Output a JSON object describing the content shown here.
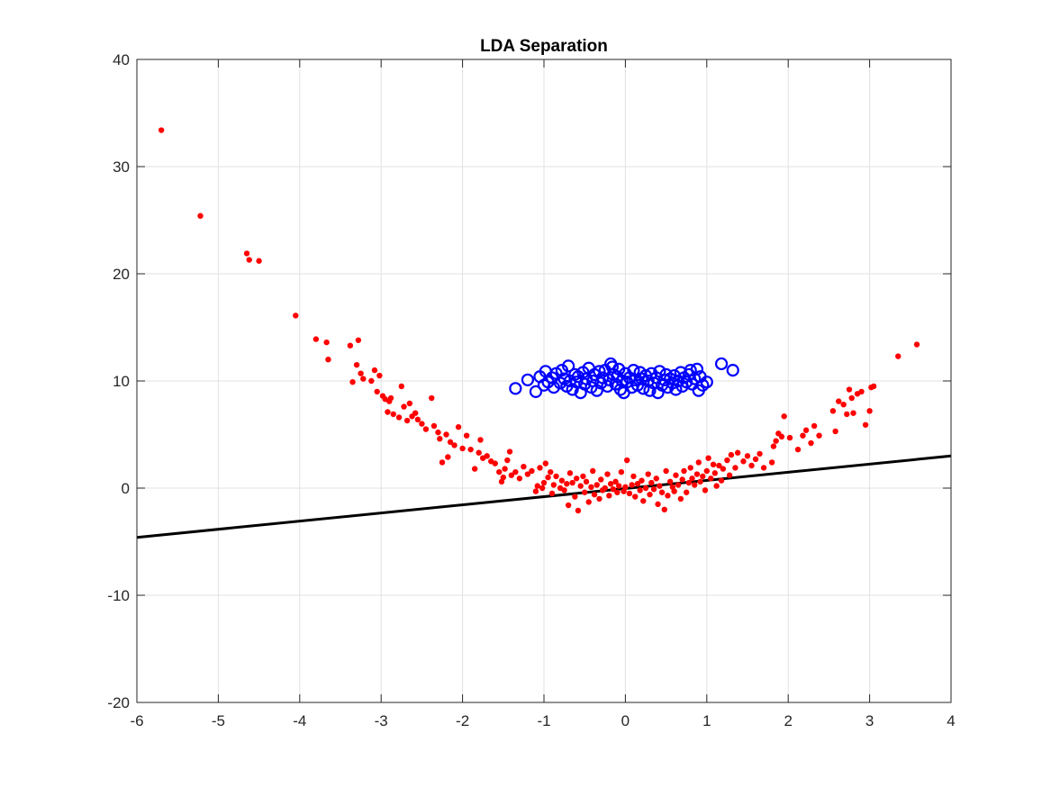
{
  "chart_data": {
    "type": "scatter",
    "title": "LDA Separation",
    "xlabel": "",
    "ylabel": "",
    "xlim": [
      -6,
      4
    ],
    "ylim": [
      -20,
      40
    ],
    "xticks": [
      "-6",
      "-5",
      "-4",
      "-3",
      "-2",
      "-1",
      "0",
      "1",
      "2",
      "3",
      "4"
    ],
    "yticks": [
      "-20",
      "-10",
      "0",
      "10",
      "20",
      "30",
      "40"
    ],
    "grid": true,
    "legend": "none",
    "series": [
      {
        "marker": "filled-dot",
        "color": "#ff0000",
        "points": [
          [
            -5.7,
            33.4
          ],
          [
            -5.22,
            25.4
          ],
          [
            -4.65,
            21.9
          ],
          [
            -4.62,
            21.3
          ],
          [
            -4.5,
            21.2
          ],
          [
            -4.05,
            16.1
          ],
          [
            -3.8,
            13.9
          ],
          [
            -3.67,
            13.6
          ],
          [
            -3.65,
            12.0
          ],
          [
            -3.38,
            13.3
          ],
          [
            -3.28,
            13.8
          ],
          [
            -3.3,
            11.5
          ],
          [
            -3.25,
            10.7
          ],
          [
            -3.35,
            9.9
          ],
          [
            -3.22,
            10.2
          ],
          [
            -3.12,
            10.0
          ],
          [
            -3.08,
            11.0
          ],
          [
            -3.05,
            9.0
          ],
          [
            -3.02,
            10.5
          ],
          [
            -2.98,
            8.6
          ],
          [
            -2.95,
            8.3
          ],
          [
            -2.92,
            7.1
          ],
          [
            -2.9,
            8.1
          ],
          [
            -2.88,
            8.4
          ],
          [
            -2.85,
            6.9
          ],
          [
            -2.78,
            6.6
          ],
          [
            -2.75,
            9.5
          ],
          [
            -2.72,
            7.6
          ],
          [
            -2.68,
            6.3
          ],
          [
            -2.65,
            7.9
          ],
          [
            -2.62,
            6.7
          ],
          [
            -2.58,
            7.0
          ],
          [
            -2.55,
            6.4
          ],
          [
            -2.5,
            6.0
          ],
          [
            -2.45,
            5.5
          ],
          [
            -2.38,
            8.4
          ],
          [
            -2.35,
            5.8
          ],
          [
            -2.3,
            5.2
          ],
          [
            -2.28,
            4.6
          ],
          [
            -2.25,
            2.4
          ],
          [
            -2.2,
            5.0
          ],
          [
            -2.18,
            2.9
          ],
          [
            -2.15,
            4.3
          ],
          [
            -2.1,
            4.0
          ],
          [
            -2.05,
            5.7
          ],
          [
            -2.0,
            3.7
          ],
          [
            -1.95,
            4.9
          ],
          [
            -1.9,
            3.6
          ],
          [
            -1.85,
            1.8
          ],
          [
            -1.8,
            3.3
          ],
          [
            -1.78,
            4.5
          ],
          [
            -1.75,
            2.8
          ],
          [
            -1.7,
            3.0
          ],
          [
            -1.65,
            2.5
          ],
          [
            -1.6,
            2.3
          ],
          [
            -1.55,
            1.5
          ],
          [
            -1.52,
            0.6
          ],
          [
            -1.5,
            1.0
          ],
          [
            -1.48,
            1.8
          ],
          [
            -1.45,
            2.6
          ],
          [
            -1.42,
            3.4
          ],
          [
            -1.4,
            1.2
          ],
          [
            -1.35,
            1.5
          ],
          [
            -1.3,
            0.9
          ],
          [
            -1.25,
            2.0
          ],
          [
            -1.2,
            1.3
          ],
          [
            -1.15,
            1.6
          ],
          [
            -1.1,
            -0.3
          ],
          [
            -1.08,
            0.2
          ],
          [
            -1.05,
            1.9
          ],
          [
            -1.02,
            0.0
          ],
          [
            -1.0,
            0.5
          ],
          [
            -0.98,
            2.3
          ],
          [
            -0.95,
            1.0
          ],
          [
            -0.92,
            1.5
          ],
          [
            -0.9,
            -0.5
          ],
          [
            -0.88,
            0.3
          ],
          [
            -0.85,
            1.1
          ],
          [
            -0.8,
            0.0
          ],
          [
            -0.78,
            0.7
          ],
          [
            -0.75,
            -0.2
          ],
          [
            -0.72,
            0.4
          ],
          [
            -0.7,
            -1.6
          ],
          [
            -0.68,
            1.4
          ],
          [
            -0.65,
            0.5
          ],
          [
            -0.62,
            -0.8
          ],
          [
            -0.6,
            0.9
          ],
          [
            -0.58,
            -2.1
          ],
          [
            -0.55,
            0.2
          ],
          [
            -0.52,
            1.1
          ],
          [
            -0.5,
            -0.4
          ],
          [
            -0.48,
            0.6
          ],
          [
            -0.45,
            -1.3
          ],
          [
            -0.42,
            0.1
          ],
          [
            -0.4,
            1.6
          ],
          [
            -0.38,
            -0.6
          ],
          [
            -0.35,
            0.3
          ],
          [
            -0.32,
            -1.0
          ],
          [
            -0.3,
            0.8
          ],
          [
            -0.28,
            -0.2
          ],
          [
            -0.25,
            0.0
          ],
          [
            -0.22,
            1.3
          ],
          [
            -0.2,
            -0.7
          ],
          [
            -0.18,
            0.4
          ],
          [
            -0.15,
            -0.1
          ],
          [
            -0.12,
            0.6
          ],
          [
            -0.1,
            -0.4
          ],
          [
            -0.08,
            0.2
          ],
          [
            -0.05,
            1.5
          ],
          [
            -0.02,
            -0.3
          ],
          [
            0.0,
            0.1
          ],
          [
            0.02,
            2.6
          ],
          [
            0.05,
            -0.5
          ],
          [
            0.08,
            0.3
          ],
          [
            0.1,
            1.1
          ],
          [
            0.12,
            -0.8
          ],
          [
            0.15,
            0.4
          ],
          [
            0.18,
            -0.2
          ],
          [
            0.2,
            0.7
          ],
          [
            0.22,
            -1.2
          ],
          [
            0.25,
            0.0
          ],
          [
            0.28,
            1.3
          ],
          [
            0.3,
            -0.6
          ],
          [
            0.32,
            0.5
          ],
          [
            0.35,
            -0.1
          ],
          [
            0.38,
            0.9
          ],
          [
            0.4,
            -1.5
          ],
          [
            0.42,
            0.2
          ],
          [
            0.45,
            -0.4
          ],
          [
            0.48,
            -2.0
          ],
          [
            0.5,
            1.6
          ],
          [
            0.52,
            -0.7
          ],
          [
            0.55,
            0.6
          ],
          [
            0.58,
            0.1
          ],
          [
            0.6,
            -0.3
          ],
          [
            0.62,
            1.2
          ],
          [
            0.65,
            0.3
          ],
          [
            0.68,
            -1.0
          ],
          [
            0.7,
            0.8
          ],
          [
            0.72,
            1.6
          ],
          [
            0.75,
            -0.4
          ],
          [
            0.78,
            0.5
          ],
          [
            0.8,
            1.9
          ],
          [
            0.82,
            0.9
          ],
          [
            0.85,
            0.3
          ],
          [
            0.88,
            1.3
          ],
          [
            0.9,
            2.4
          ],
          [
            0.92,
            0.6
          ],
          [
            0.95,
            1.1
          ],
          [
            0.98,
            -0.2
          ],
          [
            1.0,
            1.6
          ],
          [
            1.02,
            2.8
          ],
          [
            1.05,
            0.9
          ],
          [
            1.08,
            2.2
          ],
          [
            1.1,
            1.4
          ],
          [
            1.12,
            0.2
          ],
          [
            1.15,
            2.1
          ],
          [
            1.18,
            0.7
          ],
          [
            1.2,
            1.8
          ],
          [
            1.25,
            2.6
          ],
          [
            1.28,
            1.2
          ],
          [
            1.3,
            3.1
          ],
          [
            1.35,
            1.9
          ],
          [
            1.38,
            3.3
          ],
          [
            1.45,
            2.5
          ],
          [
            1.5,
            3.0
          ],
          [
            1.55,
            2.1
          ],
          [
            1.6,
            2.7
          ],
          [
            1.65,
            3.2
          ],
          [
            1.7,
            1.9
          ],
          [
            1.8,
            2.4
          ],
          [
            1.82,
            3.9
          ],
          [
            1.85,
            4.4
          ],
          [
            1.88,
            5.1
          ],
          [
            1.92,
            4.8
          ],
          [
            1.95,
            6.7
          ],
          [
            2.02,
            4.7
          ],
          [
            2.12,
            3.6
          ],
          [
            2.18,
            4.9
          ],
          [
            2.22,
            5.4
          ],
          [
            2.28,
            4.2
          ],
          [
            2.32,
            5.8
          ],
          [
            2.38,
            4.9
          ],
          [
            2.55,
            7.2
          ],
          [
            2.58,
            5.3
          ],
          [
            2.62,
            8.1
          ],
          [
            2.68,
            7.8
          ],
          [
            2.72,
            6.9
          ],
          [
            2.75,
            9.2
          ],
          [
            2.78,
            8.4
          ],
          [
            2.8,
            7.0
          ],
          [
            2.85,
            8.8
          ],
          [
            2.9,
            9.0
          ],
          [
            2.95,
            5.9
          ],
          [
            3.02,
            9.4
          ],
          [
            3.05,
            9.5
          ],
          [
            3.0,
            7.2
          ],
          [
            3.35,
            12.3
          ],
          [
            3.58,
            13.4
          ]
        ]
      },
      {
        "marker": "open-circle",
        "color": "#0000ff",
        "points": [
          [
            -1.35,
            9.3
          ],
          [
            -1.2,
            10.1
          ],
          [
            -1.1,
            9.0
          ],
          [
            -1.05,
            10.4
          ],
          [
            -1.0,
            9.6
          ],
          [
            -0.98,
            10.9
          ],
          [
            -0.95,
            9.9
          ],
          [
            -0.9,
            10.3
          ],
          [
            -0.88,
            9.4
          ],
          [
            -0.85,
            10.7
          ],
          [
            -0.8,
            9.8
          ],
          [
            -0.78,
            11.0
          ],
          [
            -0.75,
            10.2
          ],
          [
            -0.72,
            9.5
          ],
          [
            -0.7,
            11.4
          ],
          [
            -0.68,
            10.0
          ],
          [
            -0.65,
            9.2
          ],
          [
            -0.62,
            10.6
          ],
          [
            -0.6,
            9.9
          ],
          [
            -0.58,
            10.4
          ],
          [
            -0.55,
            8.9
          ],
          [
            -0.52,
            10.8
          ],
          [
            -0.5,
            9.7
          ],
          [
            -0.48,
            10.2
          ],
          [
            -0.45,
            11.2
          ],
          [
            -0.42,
            9.4
          ],
          [
            -0.4,
            10.0
          ],
          [
            -0.38,
            10.6
          ],
          [
            -0.35,
            9.1
          ],
          [
            -0.32,
            10.9
          ],
          [
            -0.3,
            9.8
          ],
          [
            -0.28,
            10.3
          ],
          [
            -0.25,
            11.0
          ],
          [
            -0.22,
            9.5
          ],
          [
            -0.2,
            10.1
          ],
          [
            -0.18,
            11.6
          ],
          [
            -0.16,
            11.3
          ],
          [
            -0.15,
            10.6
          ],
          [
            -0.12,
            9.7
          ],
          [
            -0.1,
            10.4
          ],
          [
            -0.08,
            11.1
          ],
          [
            -0.06,
            9.2
          ],
          [
            -0.04,
            10.0
          ],
          [
            -0.02,
            8.9
          ],
          [
            0.0,
            10.7
          ],
          [
            0.02,
            9.9
          ],
          [
            0.05,
            10.3
          ],
          [
            0.08,
            9.4
          ],
          [
            0.1,
            11.0
          ],
          [
            0.12,
            10.1
          ],
          [
            0.15,
            9.6
          ],
          [
            0.18,
            10.8
          ],
          [
            0.2,
            10.2
          ],
          [
            0.22,
            9.3
          ],
          [
            0.25,
            10.5
          ],
          [
            0.28,
            10.0
          ],
          [
            0.3,
            9.1
          ],
          [
            0.32,
            10.7
          ],
          [
            0.35,
            9.8
          ],
          [
            0.38,
            10.3
          ],
          [
            0.4,
            8.9
          ],
          [
            0.42,
            10.9
          ],
          [
            0.45,
            9.6
          ],
          [
            0.48,
            10.1
          ],
          [
            0.5,
            10.6
          ],
          [
            0.52,
            9.4
          ],
          [
            0.55,
            10.2
          ],
          [
            0.58,
            9.8
          ],
          [
            0.6,
            10.5
          ],
          [
            0.62,
            9.2
          ],
          [
            0.65,
            10.0
          ],
          [
            0.68,
            10.8
          ],
          [
            0.7,
            9.5
          ],
          [
            0.72,
            10.3
          ],
          [
            0.75,
            9.9
          ],
          [
            0.78,
            10.6
          ],
          [
            0.8,
            11.0
          ],
          [
            0.82,
            9.7
          ],
          [
            0.85,
            10.2
          ],
          [
            0.88,
            11.1
          ],
          [
            0.9,
            9.1
          ],
          [
            0.92,
            10.4
          ],
          [
            0.95,
            9.6
          ],
          [
            1.0,
            9.9
          ],
          [
            1.18,
            11.6
          ],
          [
            1.32,
            11.0
          ]
        ]
      }
    ],
    "lines": [
      {
        "color": "#000000",
        "x": [
          -6,
          4
        ],
        "y": [
          -4.6,
          3.0
        ]
      }
    ]
  }
}
